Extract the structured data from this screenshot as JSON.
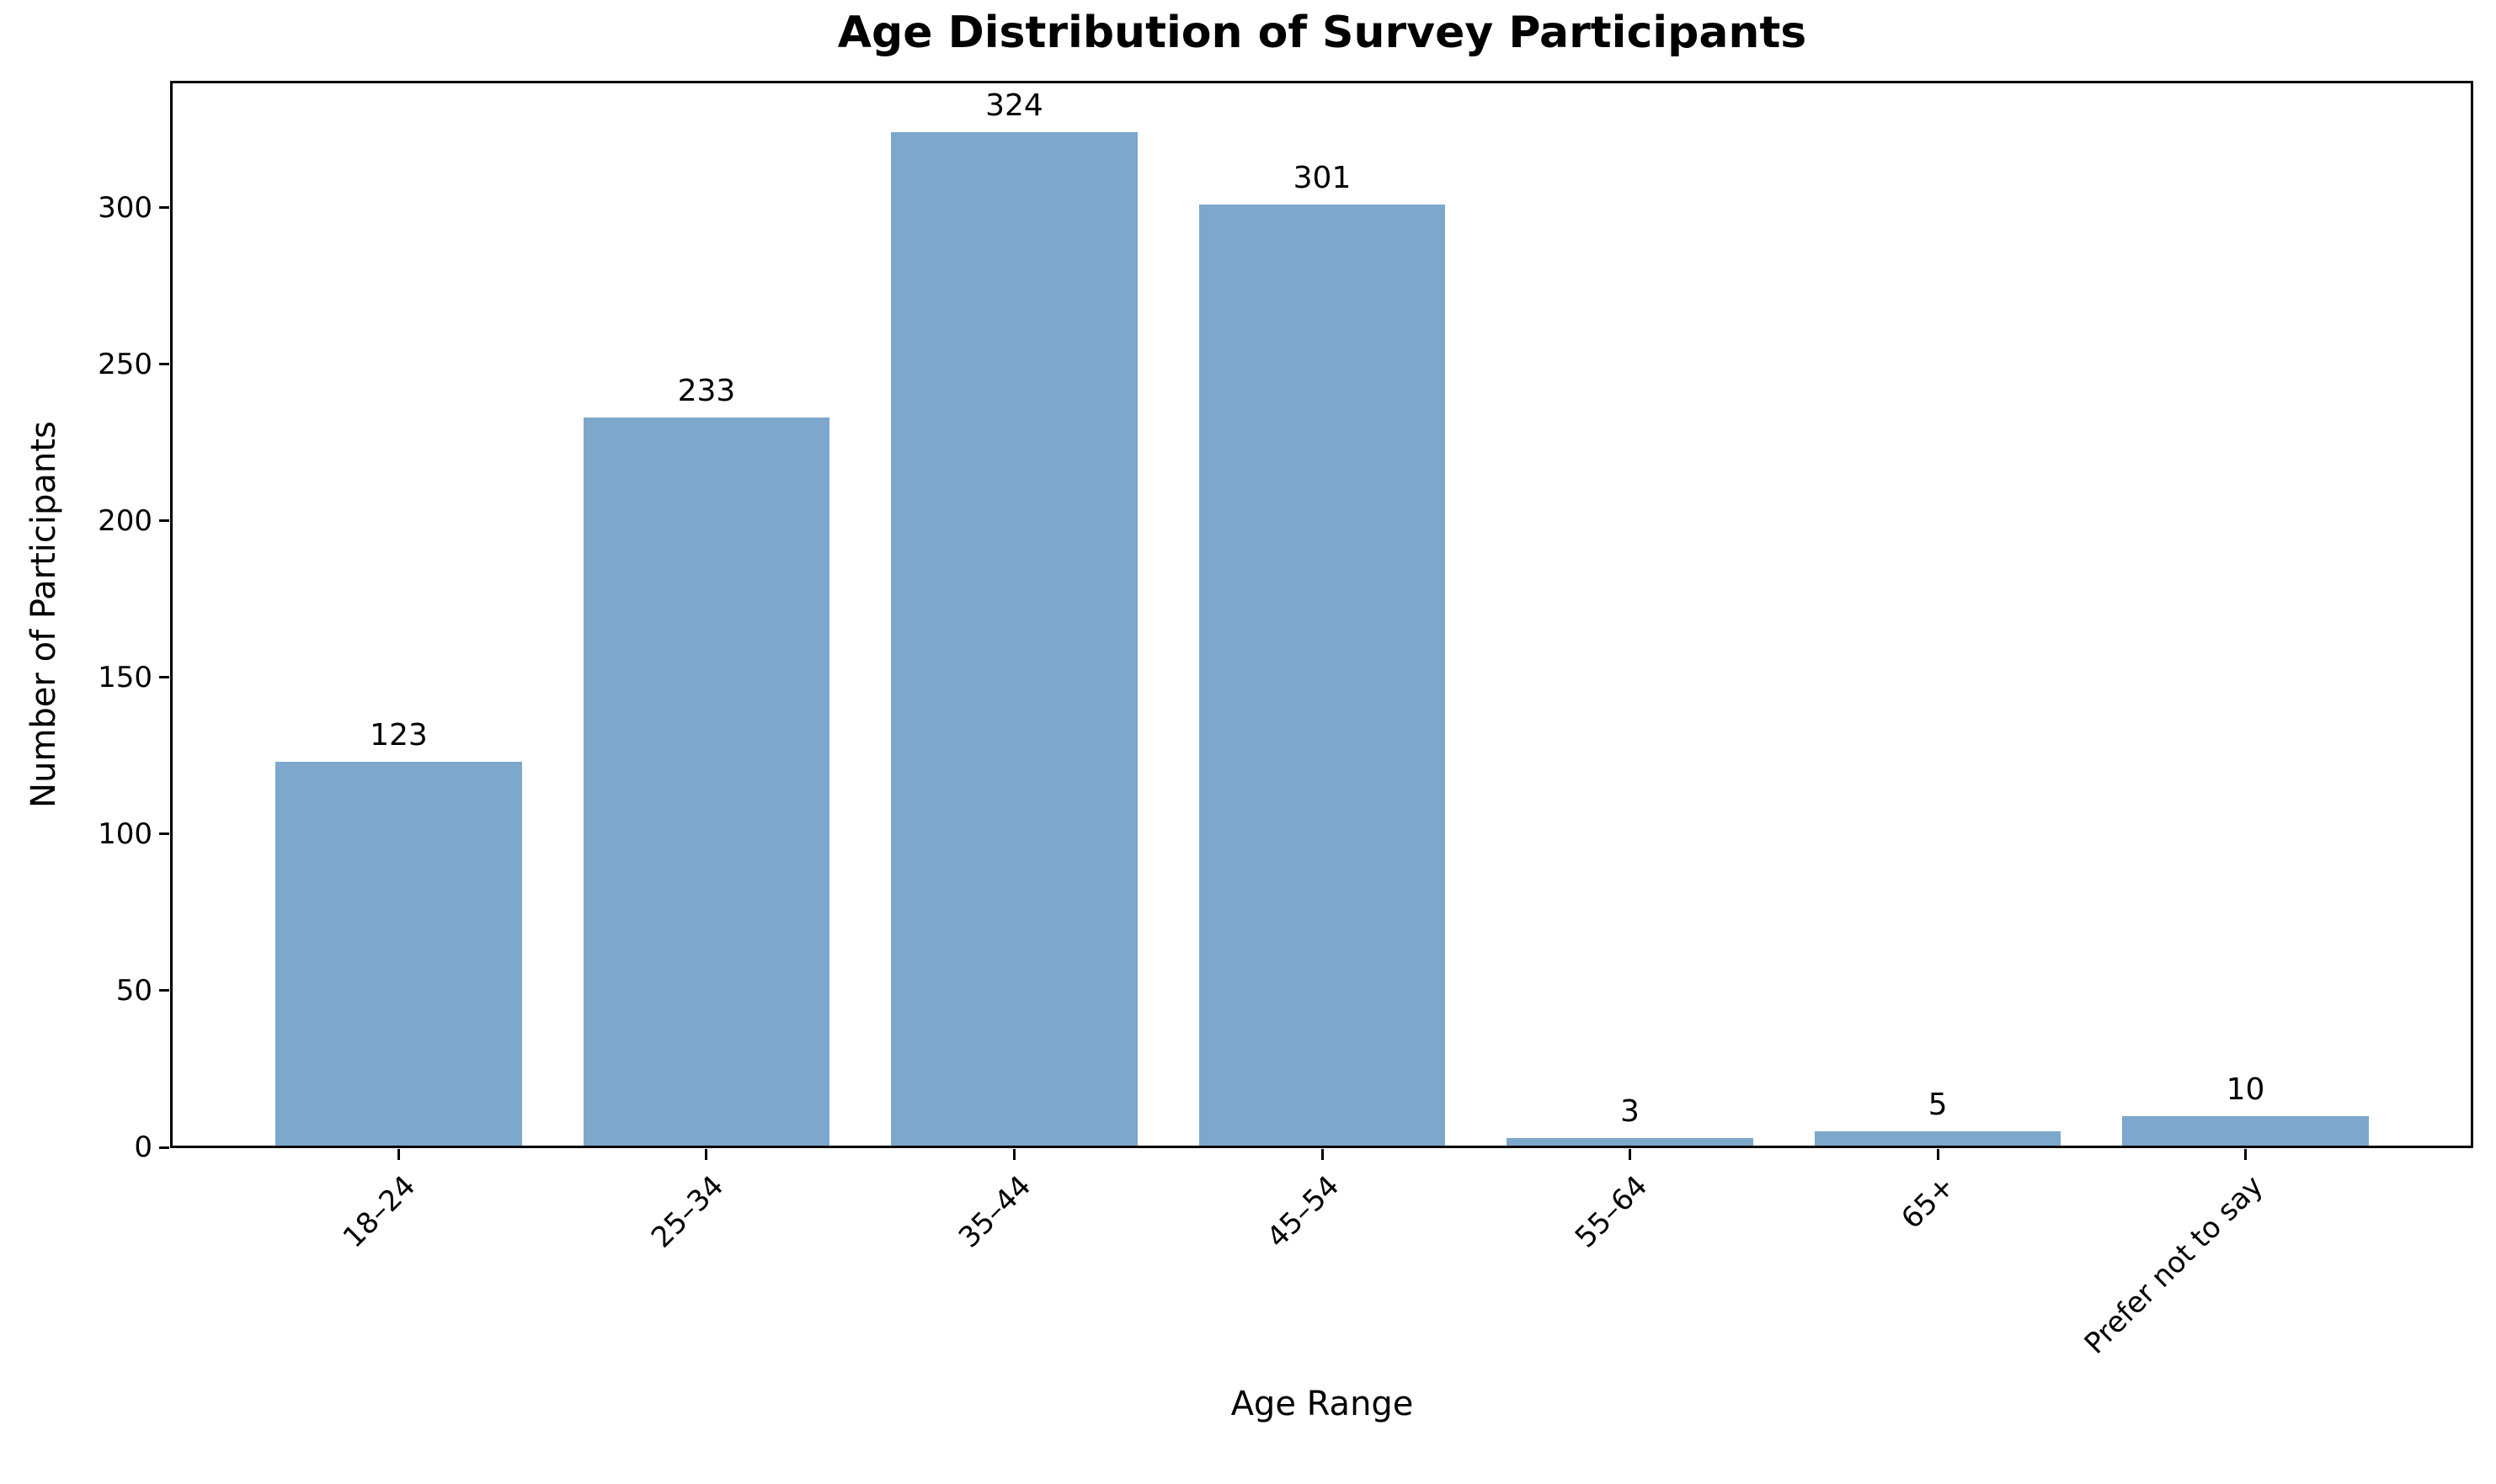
{
  "chart_data": {
    "type": "bar",
    "title": "Age Distribution of Survey Participants",
    "xlabel": "Age Range",
    "ylabel": "Number of Participants",
    "categories": [
      "18–24",
      "25–34",
      "35–44",
      "45–54",
      "55–64",
      "65+",
      "Prefer not to say"
    ],
    "values": [
      123,
      233,
      324,
      301,
      3,
      5,
      10
    ],
    "bar_value_labels": [
      "123",
      "233",
      "324",
      "301",
      "3",
      "5",
      "10"
    ],
    "ylim": [
      0,
      340.2
    ],
    "yticks": [
      0,
      50,
      100,
      150,
      200,
      250,
      300
    ],
    "ytick_labels": [
      "0",
      "50",
      "100",
      "150",
      "200",
      "250",
      "300"
    ],
    "xtick_rotation_deg": 45,
    "grid": false,
    "legend": null,
    "bar_color": "#7da7cb",
    "spine_color": "#000000",
    "text_color": "#000000",
    "background_color": "#ffffff"
  }
}
